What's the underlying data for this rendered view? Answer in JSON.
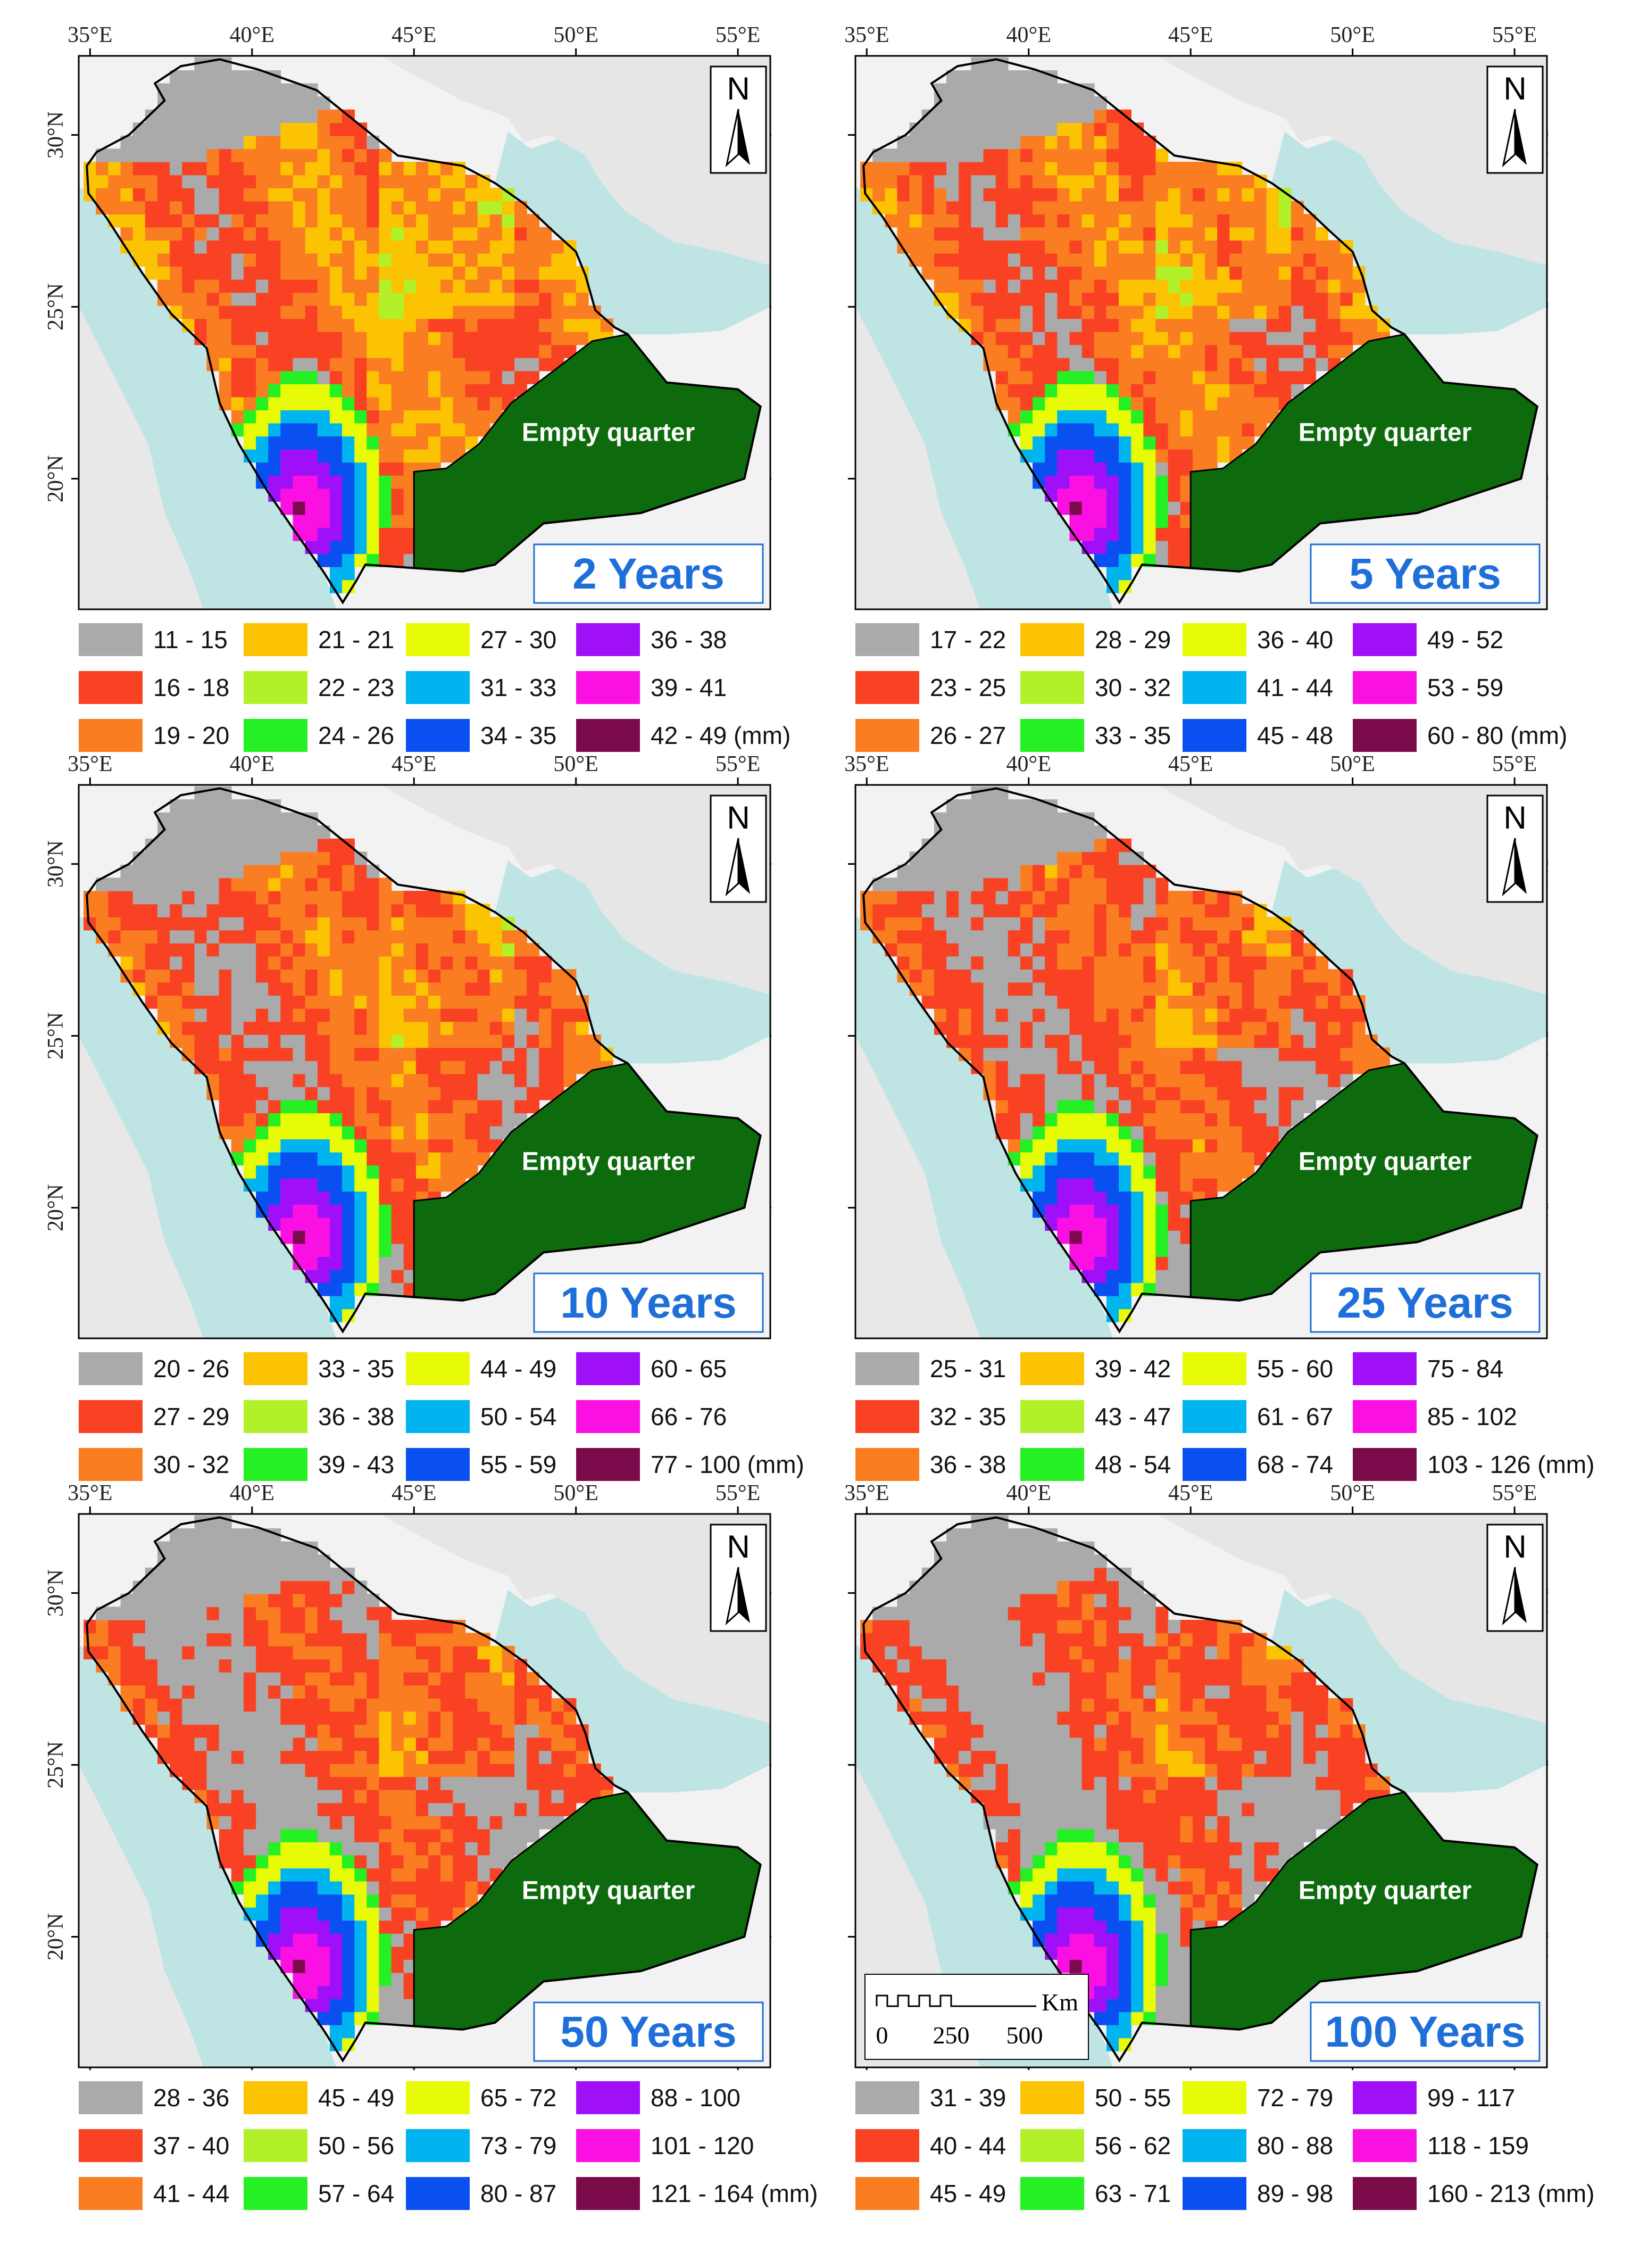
{
  "axes": {
    "lon_labels": [
      "35°E",
      "40°E",
      "45°E",
      "50°E",
      "55°E"
    ],
    "lat_labels": [
      "30°N",
      "25°N",
      "20°N"
    ]
  },
  "north_label": "N",
  "region_label": "Empty quarter",
  "scale_bar": {
    "unit": "Km",
    "ticks": [
      "0",
      "250",
      "500"
    ]
  },
  "colors": {
    "class_colors": [
      "#aaaaaa",
      "#f94224",
      "#fa7d21",
      "#fbc302",
      "#b2f12a",
      "#24f024",
      "#e6fb05",
      "#00b4f0",
      "#0a50f0",
      "#9f10f9",
      "#fa10e2",
      "#7a0a4a"
    ],
    "empty_quarter": "#0d6b0d",
    "sea": "#bfe4e4",
    "land": "#f2f2f2",
    "period_text": "#1e6fd9"
  },
  "panels": [
    {
      "period": "2 Years",
      "classes": [
        "11 - 15",
        "16 - 18",
        "19 - 20",
        "21 - 21",
        "22 - 23",
        "24 - 26",
        "27 - 30",
        "31 - 33",
        "34 - 35",
        "36 - 38",
        "39 - 41",
        "42 - 49 (mm)"
      ]
    },
    {
      "period": "5 Years",
      "classes": [
        "17 - 22",
        "23 - 25",
        "26 - 27",
        "28 - 29",
        "30 - 32",
        "33 - 35",
        "36 - 40",
        "41 - 44",
        "45 - 48",
        "49 - 52",
        "53 - 59",
        "60 - 80 (mm)"
      ]
    },
    {
      "period": "10 Years",
      "classes": [
        "20 - 26",
        "27 - 29",
        "30 - 32",
        "33 - 35",
        "36 - 38",
        "39 - 43",
        "44 - 49",
        "50 - 54",
        "55 - 59",
        "60 - 65",
        "66 - 76",
        "77 - 100 (mm)"
      ]
    },
    {
      "period": "25 Years",
      "classes": [
        "25 - 31",
        "32 - 35",
        "36 - 38",
        "39 - 42",
        "43 - 47",
        "48 - 54",
        "55 - 60",
        "61 - 67",
        "68 - 74",
        "75 - 84",
        "85 - 102",
        "103 - 126 (mm)"
      ]
    },
    {
      "period": "50 Years",
      "classes": [
        "28 - 36",
        "37 - 40",
        "41 - 44",
        "45 - 49",
        "50 - 56",
        "57 - 64",
        "65 - 72",
        "73 - 79",
        "80 - 87",
        "88 - 100",
        "101 - 120",
        "121 - 164 (mm)"
      ]
    },
    {
      "period": "100 Years",
      "classes": [
        "31 - 39",
        "40 - 44",
        "45 - 49",
        "50 - 55",
        "56 - 62",
        "63 - 71",
        "72 - 79",
        "80 - 88",
        "89 - 98",
        "99 - 117",
        "118 - 159",
        "160 - 213 (mm)"
      ]
    }
  ]
}
